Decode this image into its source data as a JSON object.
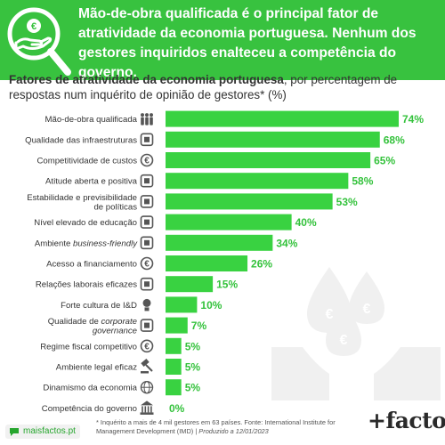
{
  "header": {
    "headline": "Mão-de-obra qualificada é o principal fator de atratividade da economia portuguesa. Nenhum dos gestores inquiridos enalteceu a competência do governo.",
    "icon": "money-hand-magnifier-icon"
  },
  "subtitle": {
    "bold": "Fatores de atratividade da economia portuguesa",
    "rest": ", por percentagem de respostas num inquérito de opinião de gestores* (%)"
  },
  "chart_data": {
    "type": "bar",
    "orientation": "horizontal",
    "categories": [
      "Mão-de-obra qualificada",
      "Qualidade das infraestruturas",
      "Competitividade de custos",
      "Atitude aberta e positiva",
      "Estabilidade e previsibilidade de políticas",
      "Nível elevado de educação",
      "Ambiente business-friendly",
      "Acesso a financiamento",
      "Relações laborais eficazes",
      "Forte cultura de I&D",
      "Qualidade de corporate governance",
      "Regime fiscal competitivo",
      "Ambiente legal eficaz",
      "Dinamismo da economia",
      "Competência do governo"
    ],
    "values": [
      74,
      68,
      65,
      58,
      53,
      40,
      34,
      26,
      15,
      10,
      7,
      5,
      5,
      5,
      0
    ],
    "value_labels": [
      "74%",
      "68%",
      "65%",
      "58%",
      "53%",
      "40%",
      "34%",
      "26%",
      "15%",
      "10%",
      "7%",
      "5%",
      "5%",
      "5%",
      "0%"
    ],
    "icons": [
      "workers-icon",
      "road-icon",
      "euro-icon",
      "open-hand-icon",
      "head-gear-icon",
      "books-icon",
      "factory-icon",
      "money-hand-icon",
      "handshake-icon",
      "lightbulb-icon",
      "board-meeting-icon",
      "coins-icon",
      "gavel-icon",
      "globe-icon",
      "government-building-icon"
    ],
    "xlim": [
      0,
      74
    ],
    "bar_color": "#39d241",
    "label_color": "#34c23c",
    "legend": "none",
    "grid": false
  },
  "footnote": {
    "text": "* Inquérito a mais de 4 mil gestores em 63 países. Fonte: International Institute for Management Development (IMD) | ",
    "italic": "Produzido a 12/01/2023"
  },
  "footer": {
    "site": "maisfactos.pt",
    "brand": "+factos"
  },
  "colors": {
    "header_bg": "#38c23f",
    "bar": "#39d241",
    "value_text": "#34c23c",
    "text": "#333333",
    "decoration": "#efefef"
  }
}
